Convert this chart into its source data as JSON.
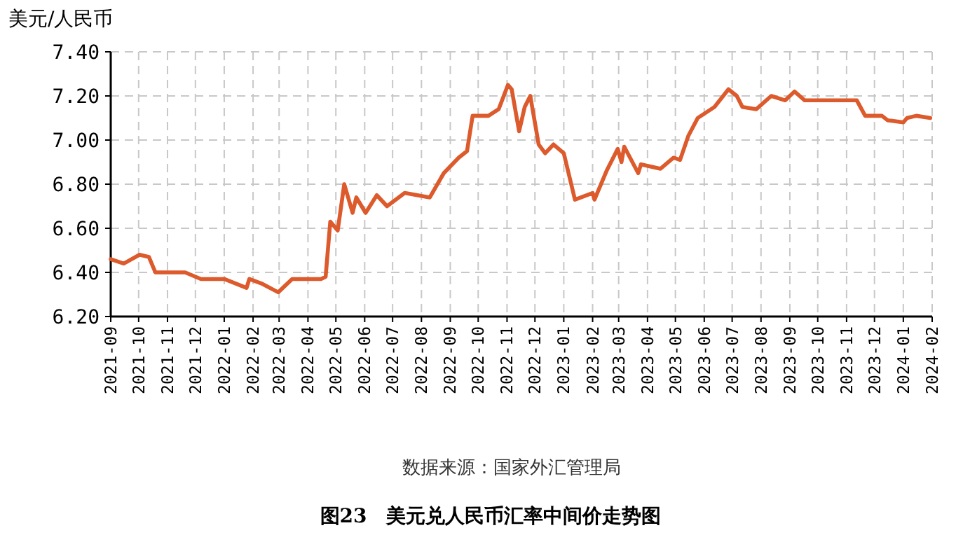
{
  "chart_data": {
    "type": "line",
    "title": "图23　美元兑人民币汇率中间价走势图",
    "ylabel": "美元/人民币",
    "annotations": [
      "数据来源：国家外汇管理局"
    ],
    "x": [
      "2021-09-01",
      "2021-09-15",
      "2021-10-02",
      "2021-10-12",
      "2021-10-19",
      "2021-11-05",
      "2021-11-20",
      "2021-12-07",
      "2022-01-01",
      "2022-01-25",
      "2022-01-28",
      "2022-02-10",
      "2022-02-28",
      "2022-03-15",
      "2022-04-15",
      "2022-04-20",
      "2022-04-25",
      "2022-05-03",
      "2022-05-10",
      "2022-05-19",
      "2022-05-23",
      "2022-06-02",
      "2022-06-14",
      "2022-06-25",
      "2022-07-14",
      "2022-08-10",
      "2022-08-25",
      "2022-09-10",
      "2022-09-19",
      "2022-09-25",
      "2022-10-12",
      "2022-10-23",
      "2022-11-02",
      "2022-11-06",
      "2022-11-14",
      "2022-11-20",
      "2022-11-26",
      "2022-12-05",
      "2022-12-12",
      "2022-12-21",
      "2023-01-01",
      "2023-01-13",
      "2023-02-01",
      "2023-02-03",
      "2023-02-16",
      "2023-02-28",
      "2023-03-04",
      "2023-03-07",
      "2023-03-22",
      "2023-03-25",
      "2023-04-15",
      "2023-04-29",
      "2023-05-06",
      "2023-05-15",
      "2023-05-25",
      "2023-06-12",
      "2023-06-27",
      "2023-07-06",
      "2023-07-12",
      "2023-07-27",
      "2023-08-12",
      "2023-08-27",
      "2023-09-06",
      "2023-09-17",
      "2023-11-12",
      "2023-11-21",
      "2023-12-09",
      "2023-12-15",
      "2024-01-01",
      "2024-01-05",
      "2024-01-15",
      "2024-01-30"
    ],
    "series": [
      {
        "color": "#dc5a2c",
        "values": [
          6.46,
          6.44,
          6.48,
          6.47,
          6.4,
          6.4,
          6.4,
          6.37,
          6.37,
          6.33,
          6.37,
          6.35,
          6.31,
          6.37,
          6.37,
          6.38,
          6.63,
          6.59,
          6.8,
          6.67,
          6.74,
          6.67,
          6.75,
          6.7,
          6.76,
          6.74,
          6.85,
          6.92,
          6.95,
          7.11,
          7.11,
          7.14,
          7.25,
          7.23,
          7.04,
          7.15,
          7.2,
          6.98,
          6.94,
          6.98,
          6.94,
          6.73,
          6.76,
          6.73,
          6.86,
          6.96,
          6.9,
          6.97,
          6.85,
          6.89,
          6.87,
          6.92,
          6.91,
          7.02,
          7.1,
          7.15,
          7.23,
          7.2,
          7.15,
          7.14,
          7.2,
          7.18,
          7.22,
          7.18,
          7.18,
          7.11,
          7.11,
          7.09,
          7.08,
          7.1,
          7.11,
          7.1
        ]
      }
    ],
    "xlim": [
      "2021-09",
      "2024-02"
    ],
    "xticks": [
      "2021-09",
      "2021-10",
      "2021-11",
      "2021-12",
      "2022-01",
      "2022-02",
      "2022-03",
      "2022-04",
      "2022-05",
      "2022-06",
      "2022-07",
      "2022-08",
      "2022-09",
      "2022-10",
      "2022-11",
      "2022-12",
      "2023-01",
      "2023-02",
      "2023-03",
      "2023-04",
      "2023-05",
      "2023-06",
      "2023-07",
      "2023-08",
      "2023-09",
      "2023-10",
      "2023-11",
      "2023-12",
      "2024-01",
      "2024-02"
    ],
    "ylim": [
      6.2,
      7.4
    ],
    "yticks": [
      {
        "value": 6.2,
        "label": "6.20"
      },
      {
        "value": 6.4,
        "label": "6.40"
      },
      {
        "value": 6.6,
        "label": "6.60"
      },
      {
        "value": 6.8,
        "label": "6.80"
      },
      {
        "value": 7.0,
        "label": "7.00"
      },
      {
        "value": 7.2,
        "label": "7.20"
      },
      {
        "value": 7.4,
        "label": "7.40"
      }
    ],
    "grid": true,
    "marker": "none",
    "line_style": "solid"
  }
}
